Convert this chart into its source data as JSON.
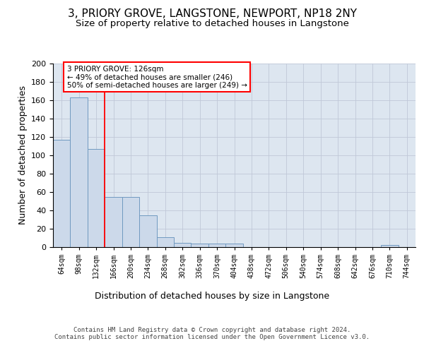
{
  "title_line1": "3, PRIORY GROVE, LANGSTONE, NEWPORT, NP18 2NY",
  "title_line2": "Size of property relative to detached houses in Langstone",
  "xlabel": "Distribution of detached houses by size in Langstone",
  "ylabel": "Number of detached properties",
  "bar_values": [
    117,
    163,
    107,
    55,
    55,
    35,
    11,
    5,
    4,
    4,
    4,
    0,
    0,
    0,
    0,
    0,
    0,
    0,
    0,
    2,
    0
  ],
  "categories": [
    "64sqm",
    "98sqm",
    "132sqm",
    "166sqm",
    "200sqm",
    "234sqm",
    "268sqm",
    "302sqm",
    "336sqm",
    "370sqm",
    "404sqm",
    "438sqm",
    "472sqm",
    "506sqm",
    "540sqm",
    "574sqm",
    "608sqm",
    "642sqm",
    "676sqm",
    "710sqm",
    "744sqm"
  ],
  "bar_color": "#ccd9ea",
  "bar_edge_color": "#7099c0",
  "bar_edge_width": 0.7,
  "grid_color": "#c0c8d8",
  "background_color": "#dde6f0",
  "red_line_x": 2,
  "annotation_text": "3 PRIORY GROVE: 126sqm\n← 49% of detached houses are smaller (246)\n50% of semi-detached houses are larger (249) →",
  "annotation_box_color": "white",
  "annotation_box_edge_color": "red",
  "ylim": [
    0,
    200
  ],
  "yticks": [
    0,
    20,
    40,
    60,
    80,
    100,
    120,
    140,
    160,
    180,
    200
  ],
  "footer_text": "Contains HM Land Registry data © Crown copyright and database right 2024.\nContains public sector information licensed under the Open Government Licence v3.0.",
  "title_fontsize": 11,
  "subtitle_fontsize": 9.5,
  "ylabel_fontsize": 9,
  "xlabel_fontsize": 9
}
